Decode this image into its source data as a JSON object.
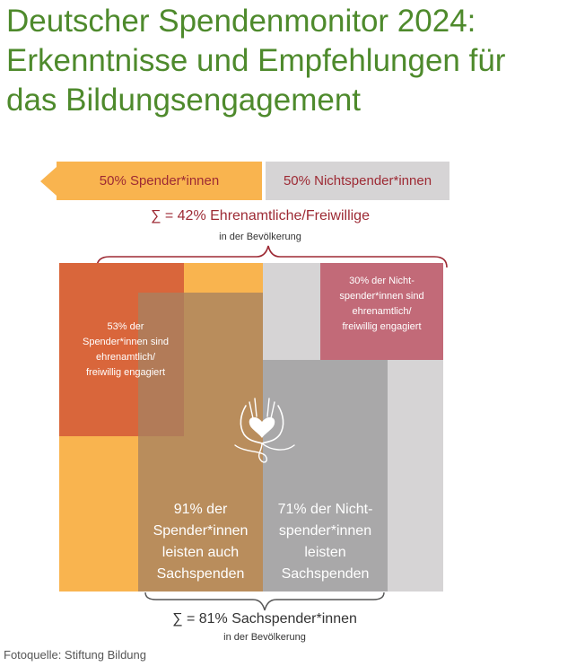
{
  "page": {
    "title_lines": [
      "Deutscher Spendenmonitor 2024:",
      "Erkenntnisse und Empfehlungen für",
      "das Bildungsengagement"
    ],
    "caption": "Fotoquelle: Stiftung Bildung"
  },
  "diagram": {
    "top_left_tag": "50% Spender*innen",
    "top_right_tag": "50% Nichtspender*innen",
    "sum_top": {
      "main": "∑ = 42% Ehrenamtliche/Freiwillige",
      "sub": "in der Bevölkerung"
    },
    "box_donors_volunteer": [
      "53% der",
      "Spender*innen sind",
      "ehrenamtlich/",
      "freiwillig engagiert"
    ],
    "box_nondonors_volunteer": [
      "30% der Nicht-",
      "spender*innen sind",
      "ehrenamtlich/",
      "freiwillig engagiert"
    ],
    "box_donors_inkind": [
      "91% der",
      "Spender*innen",
      "leisten auch",
      "Sachspenden"
    ],
    "box_nondonors_inkind": [
      "71% der Nicht-",
      "spender*innen",
      "leisten",
      "Sachspenden"
    ],
    "sum_bottom": {
      "main": "∑ = 81% Sachspender*innen",
      "sub": "in der Bevölkerung"
    },
    "icon": "hands-heart-icon",
    "colors": {
      "orange": "#f9b44f",
      "grey_light": "#d6d4d5",
      "red_orange": "#d6603a",
      "rose": "#c26a78",
      "brown": "#c39a6c",
      "grey_mid": "#a9a8a9",
      "maroon": "#9d2a34",
      "green": "#4e8a2c"
    }
  }
}
